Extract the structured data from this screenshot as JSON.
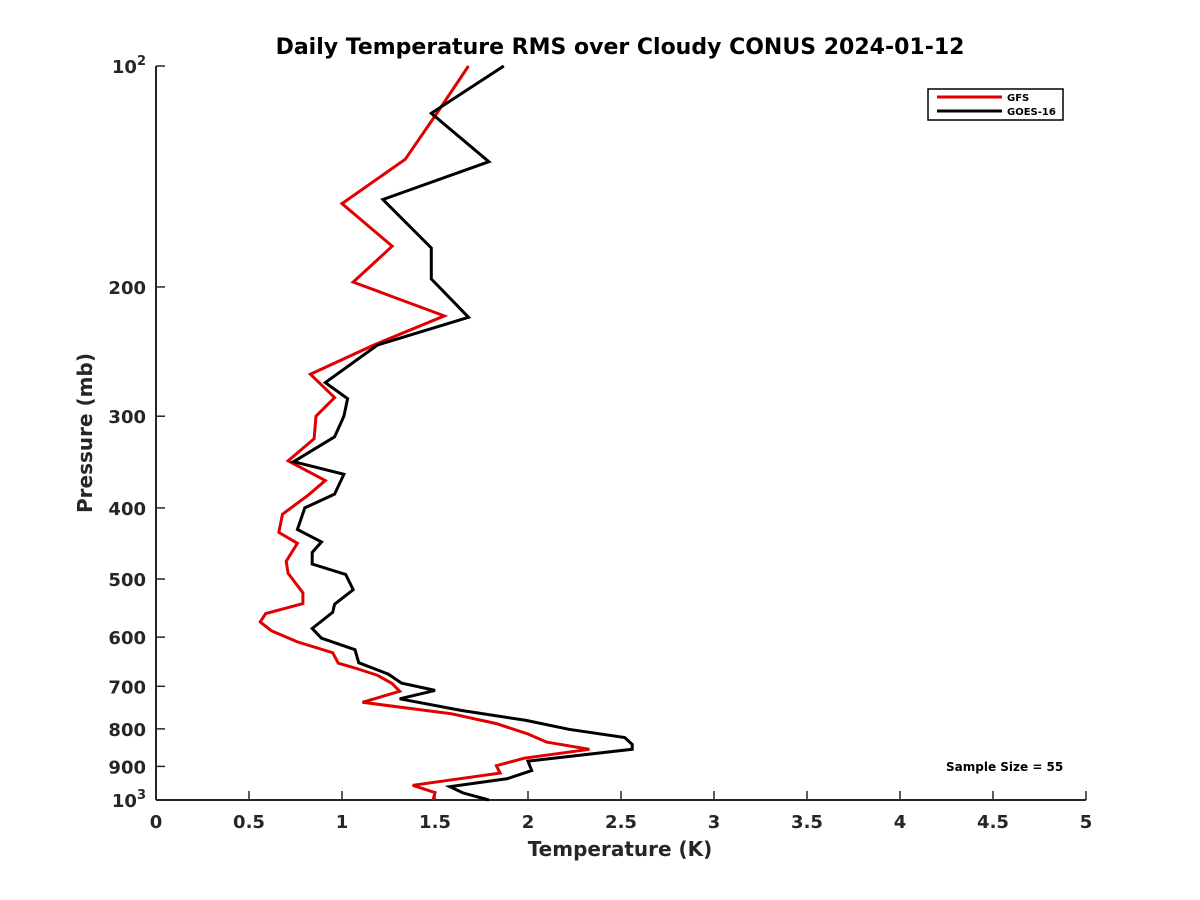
{
  "chart_data": {
    "type": "line",
    "title": "Daily Temperature RMS over Cloudy CONUS 2024-01-12",
    "xlabel": "Temperature (K)",
    "ylabel": "Pressure (mb)",
    "xlim": [
      0,
      5
    ],
    "ylim": [
      100,
      1000
    ],
    "y_scale": "log",
    "y_reversed": true,
    "grid": false,
    "legend_position": "top-right",
    "x_ticks": [
      {
        "value": 0,
        "label": "0"
      },
      {
        "value": 0.5,
        "label": "0.5"
      },
      {
        "value": 1,
        "label": "1"
      },
      {
        "value": 1.5,
        "label": "1.5"
      },
      {
        "value": 2,
        "label": "2"
      },
      {
        "value": 2.5,
        "label": "2.5"
      },
      {
        "value": 3,
        "label": "3"
      },
      {
        "value": 3.5,
        "label": "3.5"
      },
      {
        "value": 4,
        "label": "4"
      },
      {
        "value": 4.5,
        "label": "4.5"
      },
      {
        "value": 5,
        "label": "5"
      }
    ],
    "y_ticks": [
      {
        "value": 100,
        "label": "10",
        "exponent": "2"
      },
      {
        "value": 200,
        "label": "200"
      },
      {
        "value": 300,
        "label": "300"
      },
      {
        "value": 400,
        "label": "400"
      },
      {
        "value": 500,
        "label": "500"
      },
      {
        "value": 600,
        "label": "600"
      },
      {
        "value": 700,
        "label": "700"
      },
      {
        "value": 800,
        "label": "800"
      },
      {
        "value": 900,
        "label": "900"
      },
      {
        "value": 1000,
        "label": "10",
        "exponent": "3"
      }
    ],
    "series": [
      {
        "name": "GFS",
        "color": "#e00000",
        "points": [
          [
            1.68,
            100
          ],
          [
            1.5,
            117
          ],
          [
            1.34,
            134
          ],
          [
            1.0,
            154
          ],
          [
            1.27,
            176
          ],
          [
            1.06,
            197
          ],
          [
            1.55,
            219
          ],
          [
            1.17,
            240
          ],
          [
            0.83,
            263
          ],
          [
            0.96,
            283
          ],
          [
            0.86,
            300
          ],
          [
            0.85,
            322
          ],
          [
            0.71,
            345
          ],
          [
            0.91,
            367
          ],
          [
            0.82,
            384
          ],
          [
            0.68,
            408
          ],
          [
            0.66,
            432
          ],
          [
            0.76,
            447
          ],
          [
            0.7,
            473
          ],
          [
            0.71,
            491
          ],
          [
            0.79,
            522
          ],
          [
            0.79,
            540
          ],
          [
            0.59,
            557
          ],
          [
            0.56,
            572
          ],
          [
            0.62,
            588
          ],
          [
            0.76,
            609
          ],
          [
            0.95,
            630
          ],
          [
            0.98,
            651
          ],
          [
            1.07,
            661
          ],
          [
            1.19,
            676
          ],
          [
            1.27,
            694
          ],
          [
            1.31,
            711
          ],
          [
            1.11,
            736
          ],
          [
            1.59,
            763
          ],
          [
            1.83,
            787
          ],
          [
            2.0,
            813
          ],
          [
            2.1,
            834
          ],
          [
            2.33,
            853
          ],
          [
            1.98,
            877
          ],
          [
            1.83,
            898
          ],
          [
            1.85,
            919
          ],
          [
            1.38,
            955
          ],
          [
            1.5,
            977
          ],
          [
            1.49,
            1000
          ]
        ]
      },
      {
        "name": "GOES-16",
        "color": "#000000",
        "points": [
          [
            1.87,
            100
          ],
          [
            1.48,
            116
          ],
          [
            1.79,
            135
          ],
          [
            1.22,
            152
          ],
          [
            1.48,
            177
          ],
          [
            1.48,
            195
          ],
          [
            1.68,
            220
          ],
          [
            1.19,
            240
          ],
          [
            0.91,
            270
          ],
          [
            1.03,
            284
          ],
          [
            1.01,
            300
          ],
          [
            0.96,
            320
          ],
          [
            0.74,
            346
          ],
          [
            1.01,
            360
          ],
          [
            0.96,
            383
          ],
          [
            0.8,
            400
          ],
          [
            0.76,
            428
          ],
          [
            0.89,
            445
          ],
          [
            0.84,
            460
          ],
          [
            0.84,
            477
          ],
          [
            1.02,
            493
          ],
          [
            1.06,
            517
          ],
          [
            0.96,
            541
          ],
          [
            0.95,
            555
          ],
          [
            0.84,
            584
          ],
          [
            0.89,
            602
          ],
          [
            1.07,
            624
          ],
          [
            1.09,
            650
          ],
          [
            1.25,
            674
          ],
          [
            1.32,
            693
          ],
          [
            1.5,
            709
          ],
          [
            1.31,
            728
          ],
          [
            1.64,
            755
          ],
          [
            1.99,
            779
          ],
          [
            2.22,
            801
          ],
          [
            2.52,
            822
          ],
          [
            2.56,
            840
          ],
          [
            2.56,
            853
          ],
          [
            2.0,
            885
          ],
          [
            2.02,
            912
          ],
          [
            1.89,
            935
          ],
          [
            1.58,
            959
          ],
          [
            1.65,
            978
          ],
          [
            1.79,
            1000
          ]
        ]
      }
    ],
    "annotation": "Sample Size = 55"
  }
}
